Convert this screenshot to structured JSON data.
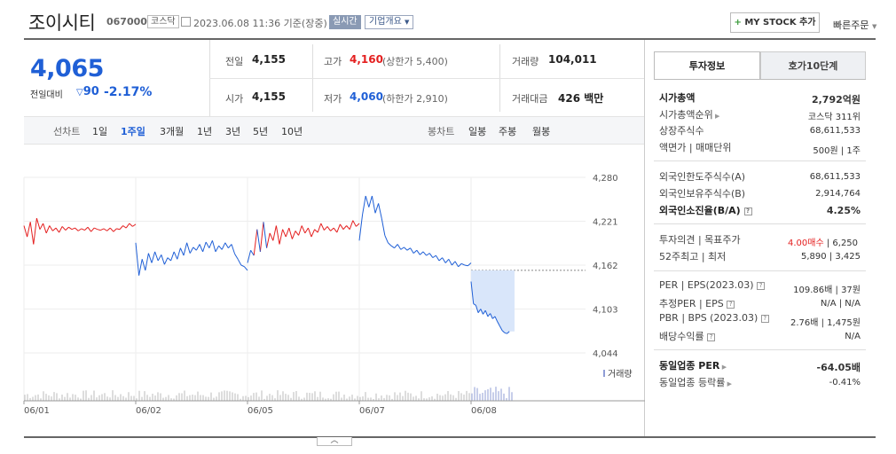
{
  "header": {
    "company_name": "조이시티",
    "stock_code": "067000",
    "market_badge": "코스닥",
    "datetime": "2023.06.08 11:36 기준(장중)",
    "realtime_label": "실시간",
    "company_overview_label": "기업개요",
    "mystock_label": "MY STOCK 추가",
    "quick_order_label": "빠른주문"
  },
  "quote": {
    "price": "4,065",
    "change_label": "전일대비",
    "change_value": "90",
    "change_pct": "-2.17%",
    "prev_close_label": "전일",
    "prev_close": "4,155",
    "high_label": "고가",
    "high": "4,160",
    "upper_limit": "(상한가 5,400)",
    "volume_label": "거래량",
    "volume": "104,011",
    "open_label": "시가",
    "open": "4,155",
    "low_label": "저가",
    "low": "4,060",
    "lower_limit": "(하한가 2,910)",
    "amount_label": "거래대금",
    "amount": "426 백만"
  },
  "toolbar": {
    "line_chart_label": "선차트",
    "periods": [
      "1일",
      "1주일",
      "3개월",
      "1년",
      "3년",
      "5년",
      "10년"
    ],
    "active_period": "1주일",
    "candle_label": "봉차트",
    "candles": [
      "일봉",
      "주봉",
      "월봉"
    ]
  },
  "chart_data": {
    "type": "line",
    "x_ticks": [
      "06/01",
      "06/02",
      "06/05",
      "06/07",
      "06/08"
    ],
    "y_ticks": [
      "4,280",
      "4,221",
      "4,162",
      "4,103",
      "4,044"
    ],
    "ylim": [
      4044,
      4280
    ],
    "prev_close": 4155,
    "volume_label": "거래량",
    "colors": {
      "up": "#e41f1f",
      "down": "#1f5fd6",
      "fill": "#d9e6fa"
    },
    "series": [
      {
        "day": "06/01",
        "values": [
          4215,
          4200,
          4220,
          4190,
          4225,
          4210,
          4218,
          4205,
          4215,
          4208,
          4212,
          4206,
          4214,
          4209,
          4213,
          4210,
          4212,
          4208,
          4211,
          4209,
          4213,
          4207,
          4212,
          4210,
          4209,
          4211,
          4208,
          4212,
          4207,
          4211,
          4210,
          4215,
          4212,
          4218,
          4214,
          4217
        ]
      },
      {
        "day": "06/02",
        "values": [
          4192,
          4148,
          4170,
          4155,
          4178,
          4165,
          4180,
          4168,
          4176,
          4163,
          4172,
          4168,
          4180,
          4170,
          4185,
          4175,
          4192,
          4178,
          4186,
          4182,
          4190,
          4180,
          4193,
          4185,
          4195,
          4180,
          4188,
          4183,
          4192,
          4185,
          4190,
          4177,
          4170,
          4162,
          4160,
          4155
        ]
      },
      {
        "day": "06/05",
        "values": [
          4165,
          4182,
          4175,
          4210,
          4180,
          4220,
          4185,
          4205,
          4195,
          4215,
          4190,
          4210,
          4200,
          4212,
          4197,
          4208,
          4202,
          4215,
          4205,
          4212,
          4200,
          4210,
          4206,
          4218,
          4209,
          4214,
          4208,
          4212,
          4206,
          4217,
          4210,
          4215,
          4210,
          4222,
          4214,
          4218
        ]
      },
      {
        "day": "06/07",
        "values": [
          4195,
          4230,
          4255,
          4240,
          4255,
          4232,
          4245,
          4225,
          4202,
          4192,
          4188,
          4185,
          4190,
          4183,
          4186,
          4182,
          4185,
          4178,
          4182,
          4176,
          4180,
          4175,
          4178,
          4172,
          4175,
          4168,
          4172,
          4165,
          4170,
          4162,
          4167,
          4160,
          4164,
          4162,
          4161,
          4165
        ]
      },
      {
        "day": "06/08",
        "values": [
          4140,
          4110,
          4108,
          4098,
          4103,
          4096,
          4101,
          4093,
          4097,
          4090,
          4093,
          4086,
          4080,
          4074,
          4071,
          4070,
          4073
        ]
      }
    ]
  },
  "panel": {
    "tab_invest": "투자정보",
    "tab_orderbook": "호가10단계",
    "rows1": [
      {
        "label": "시가총액",
        "value": "2,792억원",
        "bold": true
      },
      {
        "label": "시가총액순위",
        "value": "코스닥 311위"
      },
      {
        "label": "상장주식수",
        "value": "68,611,533"
      },
      {
        "label": "액면가 | 매매단위",
        "value": "500원 | 1주"
      }
    ],
    "rows2": [
      {
        "label": "외국인한도주식수(A)",
        "value": "68,611,533"
      },
      {
        "label": "외국인보유주식수(B)",
        "value": "2,914,764"
      },
      {
        "label": "외국인소진율(B/A)",
        "value": "4.25%",
        "bold": true
      }
    ],
    "opinion_label": "투자의견 | 목표주가",
    "opinion_value": "4.00매수",
    "target_price": "6,250",
    "week52_label": "52주최고 | 최저",
    "week52_value": "5,890 | 3,425",
    "rows4": [
      {
        "label": "PER | EPS(2023.03)",
        "value": "109.86배 | 37원"
      },
      {
        "label": "추정PER | EPS",
        "value": "N/A | N/A"
      },
      {
        "label": "PBR | BPS (2023.03)",
        "value": "2.76배 | 1,475원"
      },
      {
        "label": "배당수익률",
        "value": "N/A"
      }
    ],
    "sector_per_label": "동일업종 PER",
    "sector_per_value": "-64.05배",
    "sector_change_label": "동일업종 등락률",
    "sector_change_value": "-0.41%"
  }
}
